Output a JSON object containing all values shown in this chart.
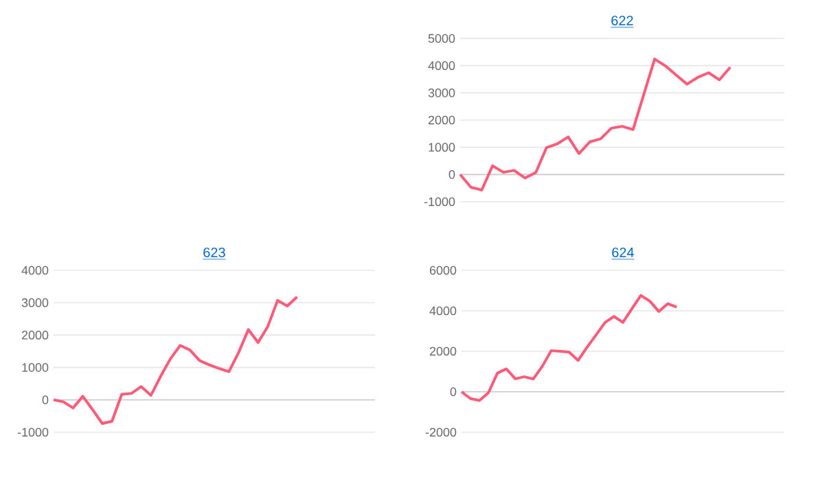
{
  "chart_data": [
    {
      "type": "line",
      "title": "622",
      "categories": [
        null,
        null,
        null,
        null,
        null,
        null,
        null,
        null,
        null,
        null,
        null,
        null,
        null,
        null,
        null,
        null,
        null,
        null,
        null,
        null,
        null,
        null,
        null,
        null,
        null,
        null,
        null,
        null,
        null,
        null,
        null
      ],
      "series": [
        {
          "color": "#ff5a78",
          "values": [
            0,
            -470,
            -570,
            320,
            80,
            150,
            -130,
            70,
            990,
            1130,
            1380,
            770,
            1200,
            1310,
            1700,
            1770,
            1650,
            2950,
            4240,
            3990,
            3650,
            3320,
            3570,
            3740,
            3480,
            3940,
            null,
            null,
            null,
            null,
            null
          ]
        }
      ],
      "ylim": [
        -1000,
        5000
      ],
      "yticks": [
        -1000,
        0,
        1000,
        2000,
        3000,
        4000,
        5000
      ],
      "grid": "y",
      "tick_labels": "y",
      "marker": "none",
      "line_style": "solid"
    },
    {
      "type": "line",
      "title": "623",
      "categories": [
        null,
        null,
        null,
        null,
        null,
        null,
        null,
        null,
        null,
        null,
        null,
        null,
        null,
        null,
        null,
        null,
        null,
        null,
        null,
        null,
        null,
        null,
        null,
        null,
        null,
        null,
        null,
        null,
        null,
        null,
        null,
        null,
        null,
        null
      ],
      "series": [
        {
          "color": "#ff5a78",
          "values": [
            0,
            -60,
            -250,
            110,
            -300,
            -730,
            -660,
            170,
            200,
            410,
            140,
            730,
            1270,
            1680,
            1540,
            1210,
            1080,
            970,
            870,
            1460,
            2170,
            1770,
            2270,
            3070,
            2900,
            3180,
            null,
            null,
            null,
            null,
            null,
            null,
            null,
            null
          ]
        }
      ],
      "ylim": [
        -1000,
        4000
      ],
      "yticks": [
        -1000,
        0,
        1000,
        2000,
        3000,
        4000
      ],
      "grid": "y",
      "tick_labels": "y",
      "marker": "none",
      "line_style": "solid"
    },
    {
      "type": "line",
      "title": "624",
      "categories": [
        null,
        null,
        null,
        null,
        null,
        null,
        null,
        null,
        null,
        null,
        null,
        null,
        null,
        null,
        null,
        null,
        null,
        null,
        null,
        null,
        null,
        null,
        null,
        null,
        null,
        null,
        null,
        null,
        null,
        null,
        null,
        null,
        null,
        null,
        null,
        null,
        null
      ],
      "series": [
        {
          "color": "#ff5a78",
          "values": [
            0,
            -340,
            -430,
            -50,
            920,
            1130,
            640,
            740,
            630,
            1250,
            2030,
            2000,
            1960,
            1550,
            2200,
            2800,
            3420,
            3720,
            3430,
            4100,
            4760,
            4480,
            3970,
            4350,
            4180,
            null,
            null,
            null,
            null,
            null,
            null,
            null,
            null,
            null,
            null,
            null,
            null
          ]
        }
      ],
      "ylim": [
        -2000,
        6000
      ],
      "yticks": [
        -2000,
        0,
        2000,
        4000,
        6000
      ],
      "grid": "y",
      "tick_labels": "y",
      "marker": "none",
      "line_style": "solid"
    }
  ]
}
